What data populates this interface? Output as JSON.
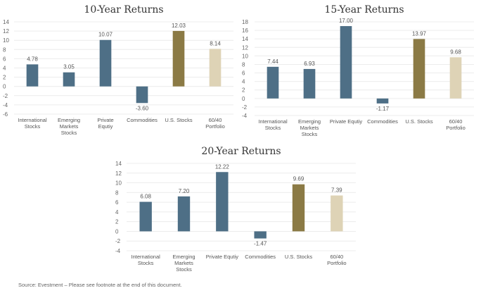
{
  "colors": {
    "blue": "#4e6f86",
    "gold": "#8b7a45",
    "beige": "#ded3b6"
  },
  "chart_data": [
    {
      "type": "bar",
      "title": "10-Year Returns",
      "categories": [
        [
          "International",
          "Stocks"
        ],
        [
          "Emerging",
          "Markets",
          "Stocks"
        ],
        [
          "Private",
          "Equtiy"
        ],
        [
          "Commodities"
        ],
        [
          "U.S. Stocks"
        ],
        [
          "60/40",
          "Portfolio"
        ]
      ],
      "values": [
        4.78,
        3.05,
        10.07,
        -3.6,
        12.03,
        8.14
      ],
      "labels": [
        "4.78",
        "3.05",
        "10.07",
        "-3.60",
        "12.03",
        "8.14"
      ],
      "bar_colors": [
        "blue",
        "blue",
        "blue",
        "blue",
        "gold",
        "beige"
      ],
      "ylim": [
        -6,
        14
      ],
      "yticks": [
        14,
        12,
        10,
        8,
        6,
        4,
        2,
        0,
        -2,
        -4,
        -6
      ],
      "grid": true
    },
    {
      "type": "bar",
      "title": "15-Year Returns",
      "categories": [
        [
          "International",
          "Stocks"
        ],
        [
          "Emerging",
          "Markets",
          "Stocks"
        ],
        [
          "Private Equtiy"
        ],
        [
          "Commodities"
        ],
        [
          "U.S. Stocks"
        ],
        [
          "60/40",
          "Portfolio"
        ]
      ],
      "values": [
        7.44,
        6.93,
        17.0,
        -1.17,
        13.97,
        9.68
      ],
      "labels": [
        "7.44",
        "6.93",
        "17.00",
        "-1.17",
        "13.97",
        "9.68"
      ],
      "bar_colors": [
        "blue",
        "blue",
        "blue",
        "blue",
        "gold",
        "beige"
      ],
      "ylim": [
        -4,
        18
      ],
      "yticks": [
        18,
        16,
        14,
        12,
        10,
        8,
        6,
        4,
        2,
        0,
        -2,
        -4
      ],
      "grid": true
    },
    {
      "type": "bar",
      "title": "20-Year Returns",
      "categories": [
        [
          "International",
          "Stocks"
        ],
        [
          "Emerging",
          "Markets",
          "Stocks"
        ],
        [
          "Private Equtiy"
        ],
        [
          "Commodities"
        ],
        [
          "U.S. Stocks"
        ],
        [
          "60/40",
          "Portfolio"
        ]
      ],
      "values": [
        6.08,
        7.2,
        12.22,
        -1.47,
        9.69,
        7.39
      ],
      "labels": [
        "6.08",
        "7.20",
        "12.22",
        "-1.47",
        "9.69",
        "7.39"
      ],
      "bar_colors": [
        "blue",
        "blue",
        "blue",
        "blue",
        "gold",
        "beige"
      ],
      "ylim": [
        -4,
        14
      ],
      "yticks": [
        14,
        12,
        10,
        8,
        6,
        4,
        2,
        0,
        -2,
        -4
      ],
      "grid": true
    }
  ],
  "footnote": "Source: Evestment – Please see footnote at the end of this document."
}
